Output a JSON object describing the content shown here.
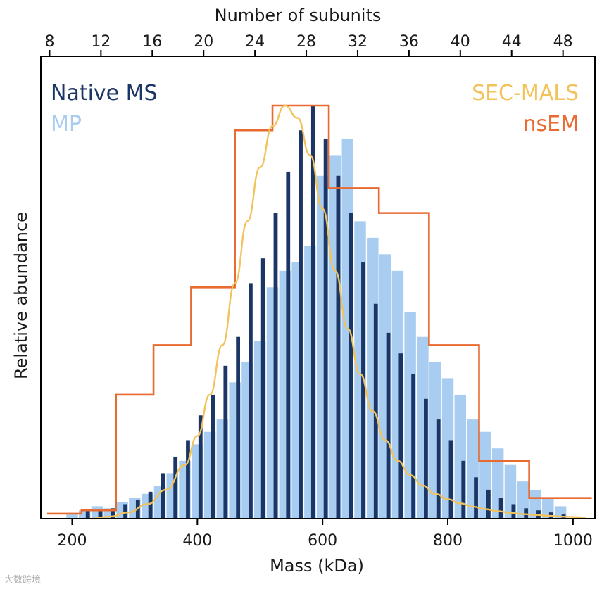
{
  "chart_data": {
    "type": "bar",
    "xlabel": "Mass (kDa)",
    "ylabel": "Relative abundance",
    "top_axis_label": "Number of subunits",
    "xlim": [
      150,
      1035
    ],
    "ylim": [
      0,
      1.0
    ],
    "xticks": [
      200,
      400,
      600,
      800,
      1000
    ],
    "top_ticks": [
      8,
      12,
      16,
      20,
      24,
      28,
      32,
      36,
      40,
      44,
      48
    ],
    "subunit_mass_kDa": 20.5,
    "legend": [
      {
        "name": "Native MS",
        "position": "top-left"
      },
      {
        "name": "MP",
        "position": "top-left"
      },
      {
        "name": "SEC-MALS",
        "position": "top-right"
      },
      {
        "name": "nsEM",
        "position": "top-right"
      }
    ],
    "series": [
      {
        "name": "Native MS",
        "kind": "bars",
        "color": "#1b3565",
        "x": [
          225,
          245,
          265,
          285,
          305,
          325,
          345,
          365,
          385,
          405,
          425,
          445,
          465,
          485,
          505,
          525,
          545,
          565,
          585,
          605,
          625,
          645,
          665,
          685,
          705,
          725,
          745,
          765,
          785,
          805,
          825,
          845,
          865,
          885,
          905,
          925,
          945,
          965,
          985
        ],
        "values": [
          0.02,
          0.02,
          0.025,
          0.035,
          0.045,
          0.065,
          0.11,
          0.15,
          0.19,
          0.25,
          0.3,
          0.37,
          0.44,
          0.57,
          0.63,
          0.74,
          0.84,
          0.94,
          1.0,
          0.92,
          0.83,
          0.74,
          0.62,
          0.52,
          0.45,
          0.4,
          0.35,
          0.29,
          0.24,
          0.19,
          0.14,
          0.1,
          0.07,
          0.05,
          0.035,
          0.025,
          0.02,
          0.015,
          0.01
        ]
      },
      {
        "name": "MP",
        "kind": "bars",
        "color": "#a9cdf0",
        "x": [
          200,
          220,
          240,
          260,
          280,
          300,
          320,
          340,
          360,
          380,
          400,
          420,
          440,
          460,
          480,
          500,
          520,
          540,
          560,
          580,
          600,
          620,
          640,
          660,
          680,
          700,
          720,
          740,
          760,
          780,
          800,
          820,
          840,
          860,
          880,
          900,
          920,
          940,
          960,
          980
        ],
        "values": [
          0.01,
          0.02,
          0.03,
          0.025,
          0.04,
          0.05,
          0.06,
          0.08,
          0.11,
          0.14,
          0.18,
          0.21,
          0.24,
          0.33,
          0.38,
          0.43,
          0.56,
          0.6,
          0.62,
          0.66,
          0.83,
          0.88,
          0.92,
          0.72,
          0.68,
          0.64,
          0.6,
          0.5,
          0.44,
          0.38,
          0.34,
          0.3,
          0.24,
          0.21,
          0.17,
          0.13,
          0.09,
          0.07,
          0.05,
          0.03
        ]
      },
      {
        "name": "nsEM",
        "kind": "step",
        "color": "#e96a30",
        "edges": [
          160,
          215,
          270,
          330,
          390,
          460,
          520,
          610,
          690,
          770,
          850,
          930,
          1030
        ],
        "values": [
          0.0,
          0.02,
          0.3,
          0.42,
          0.56,
          0.94,
          1.0,
          0.8,
          0.74,
          0.42,
          0.14,
          0.05,
          0.0
        ]
      },
      {
        "name": "SEC-MALS",
        "kind": "line",
        "color": "#f2c35b",
        "x": [
          230,
          260,
          290,
          320,
          350,
          380,
          400,
          420,
          440,
          460,
          480,
          500,
          520,
          540,
          560,
          580,
          600,
          620,
          640,
          660,
          680,
          700,
          720,
          740,
          760,
          780,
          800,
          820,
          840,
          860,
          880,
          900,
          920,
          940,
          960,
          980,
          1000,
          1020
        ],
        "values": [
          0.0,
          0.005,
          0.015,
          0.035,
          0.07,
          0.13,
          0.2,
          0.3,
          0.42,
          0.57,
          0.72,
          0.85,
          0.95,
          1.0,
          0.97,
          0.88,
          0.75,
          0.6,
          0.46,
          0.35,
          0.26,
          0.19,
          0.14,
          0.105,
          0.08,
          0.06,
          0.047,
          0.037,
          0.029,
          0.023,
          0.018,
          0.014,
          0.011,
          0.009,
          0.007,
          0.005,
          0.004,
          0.003
        ]
      }
    ]
  },
  "colors": {
    "native_ms": "#1b3565",
    "mp": "#a9cdf0",
    "sec_mals": "#f2c35b",
    "nsem": "#e96a30"
  },
  "watermark": "大数跨境"
}
